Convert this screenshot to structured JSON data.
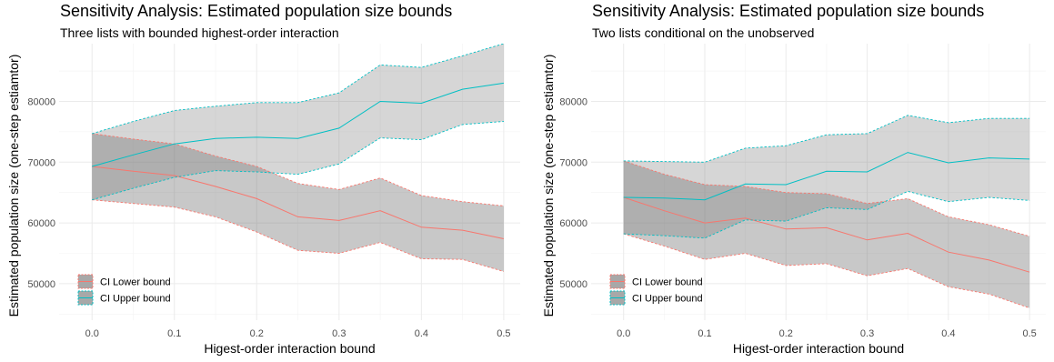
{
  "charts": [
    {
      "title": "Sensitivity Analysis: Estimated population size bounds",
      "subtitle": "Three lists with bounded highest-order interaction"
    },
    {
      "title": "Sensitivity Analysis: Estimated population size bounds",
      "subtitle": "Two lists conditional on the unobserved"
    }
  ],
  "colors": {
    "lower": "#F8766D",
    "upper": "#00BFC4",
    "band_light": "#e0e0e0",
    "band_mid": "#cccccc",
    "band_dark": "#9e9e9e",
    "grid": "#ebebeb"
  },
  "chart_data": [
    {
      "type": "area",
      "title": "Sensitivity Analysis: Estimated population size bounds",
      "subtitle": "Three lists with bounded highest-order interaction",
      "xlabel": "Higest-order interaction bound",
      "ylabel": "Estimated population size (one-step estiamtor)",
      "xlim": [
        -0.04,
        0.52
      ],
      "ylim": [
        44000,
        89500
      ],
      "xticks": [
        0.0,
        0.1,
        0.2,
        0.3,
        0.4,
        0.5
      ],
      "xtick_labels": [
        "0.0",
        "0.1",
        "0.2",
        "0.3",
        "0.4",
        "0.5"
      ],
      "yticks": [
        50000,
        60000,
        70000,
        80000
      ],
      "ytick_labels": [
        "50000",
        "60000",
        "70000",
        "80000"
      ],
      "grid": true,
      "legend_position": "bottom-left",
      "x": [
        0.0,
        0.05,
        0.1,
        0.15,
        0.2,
        0.25,
        0.3,
        0.35,
        0.4,
        0.45,
        0.5
      ],
      "series": [
        {
          "name": "CI Lower bound",
          "estimate": [
            69300,
            68500,
            67800,
            66000,
            64000,
            61000,
            60400,
            62000,
            59300,
            58800,
            57400
          ],
          "lower": [
            63800,
            63200,
            62600,
            61000,
            58500,
            55500,
            55000,
            56800,
            54100,
            54000,
            52000
          ],
          "upper": [
            74700,
            73800,
            73000,
            71000,
            69300,
            66500,
            65500,
            67400,
            64500,
            63500,
            62800
          ]
        },
        {
          "name": "CI Upper bound",
          "estimate": [
            69300,
            71200,
            73000,
            73900,
            74100,
            73900,
            75600,
            80000,
            79700,
            82000,
            83000
          ],
          "lower": [
            63800,
            65700,
            67500,
            68600,
            68400,
            68000,
            69700,
            74000,
            73700,
            76200,
            76700
          ],
          "upper": [
            74700,
            76700,
            78500,
            79200,
            79800,
            79800,
            81400,
            86000,
            85600,
            87500,
            89500
          ]
        }
      ]
    },
    {
      "type": "area",
      "title": "Sensitivity Analysis: Estimated population size bounds",
      "subtitle": "Two lists conditional on the unobserved",
      "xlabel": "Higest-order interaction bound",
      "ylabel": "Estimated population size (one-step estiamtor)",
      "xlim": [
        -0.04,
        0.52
      ],
      "ylim": [
        44000,
        89500
      ],
      "xticks": [
        0.0,
        0.1,
        0.2,
        0.3,
        0.4,
        0.5
      ],
      "xtick_labels": [
        "0.0",
        "0.1",
        "0.2",
        "0.3",
        "0.4",
        "0.5"
      ],
      "yticks": [
        50000,
        60000,
        70000,
        80000
      ],
      "ytick_labels": [
        "50000",
        "60000",
        "70000",
        "80000"
      ],
      "grid": true,
      "legend_position": "bottom-left",
      "x": [
        0.0,
        0.05,
        0.1,
        0.15,
        0.2,
        0.25,
        0.3,
        0.35,
        0.4,
        0.45,
        0.5
      ],
      "series": [
        {
          "name": "CI Lower bound",
          "estimate": [
            64200,
            62000,
            60000,
            60800,
            59000,
            59200,
            57200,
            58300,
            55200,
            53900,
            51900
          ],
          "lower": [
            58200,
            56200,
            54000,
            55000,
            53000,
            53300,
            51300,
            52500,
            49500,
            48300,
            46000
          ],
          "upper": [
            70200,
            68000,
            66300,
            66000,
            65000,
            64800,
            63200,
            64000,
            61000,
            59700,
            57800
          ]
        },
        {
          "name": "CI Upper bound",
          "estimate": [
            64200,
            64100,
            63800,
            66400,
            66300,
            68500,
            68400,
            71600,
            69900,
            70700,
            70500
          ],
          "lower": [
            58200,
            57900,
            57500,
            60500,
            60300,
            62500,
            62200,
            65200,
            63500,
            64200,
            63700
          ],
          "upper": [
            70200,
            70100,
            70000,
            72300,
            72700,
            74500,
            74700,
            77700,
            76500,
            77200,
            77200
          ]
        }
      ]
    }
  ]
}
